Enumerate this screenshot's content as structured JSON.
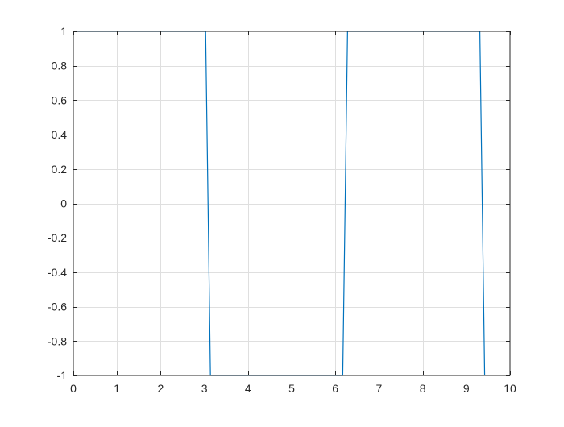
{
  "chart_data": {
    "type": "line",
    "title": "",
    "xlabel": "",
    "ylabel": "",
    "xlim": [
      0,
      10
    ],
    "ylim": [
      -1,
      1
    ],
    "xticks": [
      0,
      1,
      2,
      3,
      4,
      5,
      6,
      7,
      8,
      9,
      10
    ],
    "yticks": [
      -1,
      -0.8,
      -0.6,
      -0.4,
      -0.2,
      0,
      0.2,
      0.4,
      0.6,
      0.8,
      1
    ],
    "xtick_labels": [
      "0",
      "1",
      "2",
      "3",
      "4",
      "5",
      "6",
      "7",
      "8",
      "9",
      "10"
    ],
    "ytick_labels": [
      "-1",
      "-0.8",
      "-0.6",
      "-0.4",
      "-0.2",
      "0",
      "0.2",
      "0.4",
      "0.6",
      "0.8",
      "1"
    ],
    "grid": true,
    "series": [
      {
        "color": "#0072bd",
        "x": [
          0,
          3.03,
          3.14,
          6.17,
          6.28,
          9.31,
          9.42
        ],
        "y": [
          1,
          1,
          -1,
          -1,
          1,
          1,
          -1
        ]
      }
    ]
  },
  "colors": {
    "grid": "#dfdfdf",
    "axis": "#262626",
    "background": "#ffffff"
  }
}
